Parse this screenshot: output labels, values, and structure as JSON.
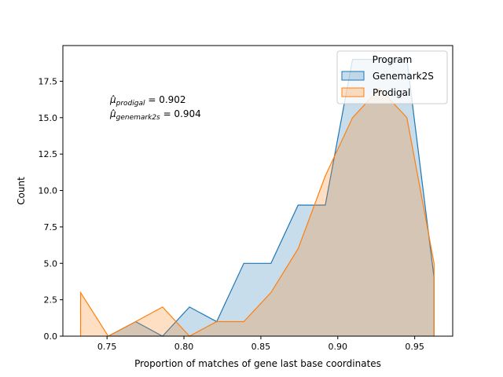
{
  "chart_data": {
    "type": "area",
    "title": "",
    "xlabel": "Proportion of matches of gene last base coordinates",
    "ylabel": "Count",
    "xlim": [
      0.7213,
      0.9747
    ],
    "ylim": [
      0,
      19.95
    ],
    "xticks": [
      0.75,
      0.8,
      0.85,
      0.9,
      0.95
    ],
    "xtick_labels": [
      "0.75",
      "0.80",
      "0.85",
      "0.90",
      "0.95"
    ],
    "yticks": [
      0,
      2.5,
      5,
      7.5,
      10,
      12.5,
      15,
      17.5
    ],
    "ytick_labels": [
      "0.0",
      "2.5",
      "5.0",
      "7.5",
      "10.0",
      "12.5",
      "15.0",
      "17.5"
    ],
    "grid": false,
    "legend": {
      "title": "Program",
      "position": "top-right"
    },
    "annotations": [
      {
        "base": "μ̂",
        "sub": "prodigal",
        "eq": " = 0.902"
      },
      {
        "base": "μ̂",
        "sub": "genemark2s",
        "eq": " = 0.904"
      }
    ],
    "series": [
      {
        "name": "Genemark2S",
        "color": "#1f77b4",
        "x": [
          0.7508,
          0.7686,
          0.7861,
          0.8036,
          0.8213,
          0.8389,
          0.8566,
          0.8742,
          0.8919,
          0.9096,
          0.9272,
          0.9449,
          0.9626
        ],
        "y": [
          0,
          1,
          0,
          2,
          1,
          5,
          5,
          9,
          9,
          19,
          19,
          19,
          4
        ]
      },
      {
        "name": "Prodigal",
        "color": "#ff7f0e",
        "x": [
          0.7328,
          0.7508,
          0.7686,
          0.7861,
          0.8036,
          0.8213,
          0.8389,
          0.8566,
          0.8742,
          0.8919,
          0.9096,
          0.9272,
          0.9449,
          0.9626
        ],
        "y": [
          3,
          0,
          1,
          2,
          0,
          1,
          1,
          3,
          6,
          11,
          15,
          17,
          15,
          5
        ]
      }
    ]
  }
}
